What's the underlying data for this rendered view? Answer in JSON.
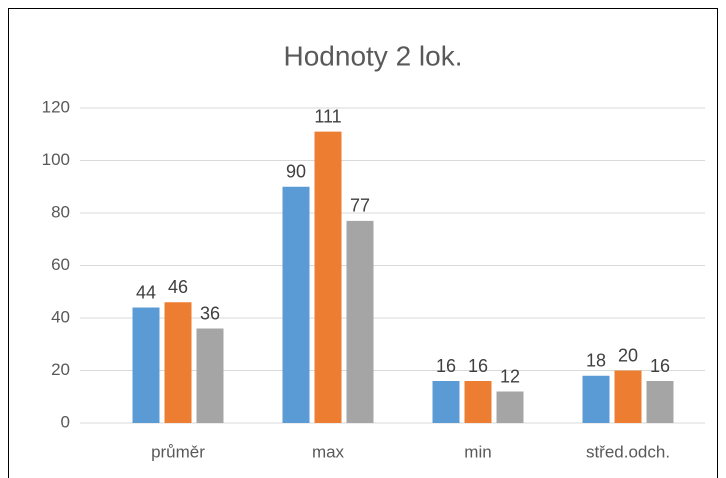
{
  "chart_data": {
    "type": "bar",
    "title": "Hodnoty 2 lok.",
    "categories": [
      "průměr",
      "max",
      "min",
      "střed.odch."
    ],
    "series": [
      {
        "color": "#5b9bd5",
        "values": [
          44,
          90,
          16,
          18
        ]
      },
      {
        "color": "#ed7d31",
        "values": [
          46,
          111,
          16,
          20
        ]
      },
      {
        "color": "#a5a5a5",
        "values": [
          36,
          77,
          12,
          16
        ]
      }
    ],
    "ylim": [
      0,
      120
    ],
    "yticks": [
      0,
      20,
      40,
      60,
      80,
      100,
      120
    ],
    "grid": true
  }
}
